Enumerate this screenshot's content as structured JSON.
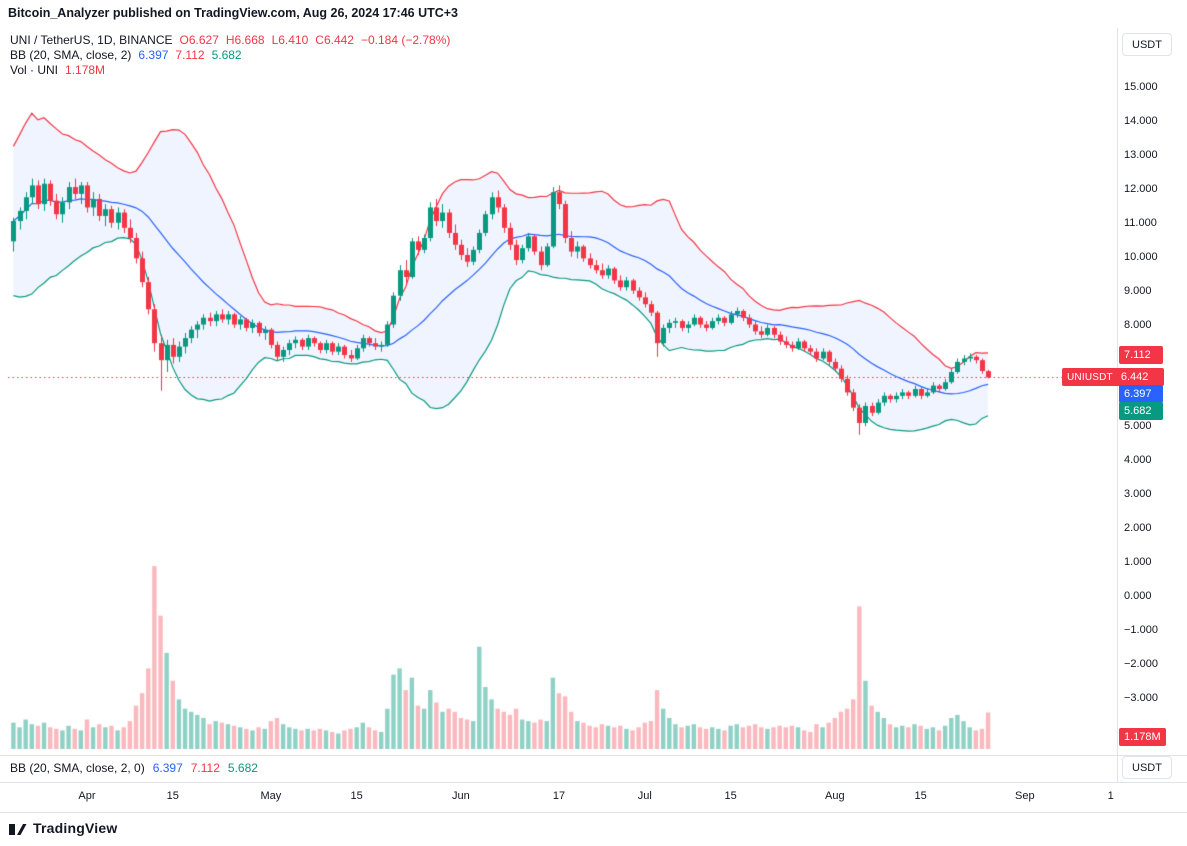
{
  "attribution": "Bitcoin_Analyzer published on TradingView.com, Aug 26, 2024 17:46 UTC+3",
  "header": {
    "symbol_line": {
      "title": "UNI / TetherUS, 1D, BINANCE",
      "o": "O6.627",
      "h": "H6.668",
      "l": "L6.410",
      "c": "C6.442",
      "change": "−0.184 (−2.78%)"
    },
    "bb_line": {
      "label": "BB (20, SMA, close, 2)",
      "basis": "6.397",
      "upper": "7.112",
      "lower": "5.682"
    },
    "vol_line": {
      "label": "Vol · UNI",
      "value": "1.178M"
    }
  },
  "bottom_legend": {
    "label": "BB (20, SMA, close, 2, 0)",
    "basis": "6.397",
    "upper": "7.112",
    "lower": "5.682"
  },
  "price_axis": {
    "currency_top": "USDT",
    "currency_bottom": "USDT",
    "labels": [
      {
        "text": "15.000",
        "value": 15
      },
      {
        "text": "14.000",
        "value": 14
      },
      {
        "text": "13.000",
        "value": 13
      },
      {
        "text": "12.000",
        "value": 12
      },
      {
        "text": "11.000",
        "value": 11
      },
      {
        "text": "10.000",
        "value": 10
      },
      {
        "text": "9.000",
        "value": 9
      },
      {
        "text": "8.000",
        "value": 8
      },
      {
        "text": "5.000",
        "value": 5
      },
      {
        "text": "4.000",
        "value": 4
      },
      {
        "text": "3.000",
        "value": 3
      },
      {
        "text": "2.000",
        "value": 2
      },
      {
        "text": "1.000",
        "value": 1
      },
      {
        "text": "0.000",
        "value": 0
      },
      {
        "text": "−1.000",
        "value": -1
      },
      {
        "text": "−2.000",
        "value": -2
      },
      {
        "text": "−3.000",
        "value": -3
      }
    ],
    "tags": [
      {
        "text": "7.112",
        "value": 7.112,
        "bg": "#f23645"
      },
      {
        "text": "6.442",
        "value": 6.442,
        "bg": "#f23645",
        "symbol": "UNIUSDT"
      },
      {
        "text": "6.397",
        "value": 6.397,
        "bg": "#2962ff"
      },
      {
        "text": "5.682",
        "value": 5.682,
        "bg": "#089981"
      }
    ],
    "volume_tag": {
      "text": "1.178M",
      "bg": "#f23645"
    }
  },
  "time_axis": {
    "labels": [
      {
        "text": "Apr",
        "date": "2024-04-01"
      },
      {
        "text": "15",
        "date": "2024-04-15"
      },
      {
        "text": "May",
        "date": "2024-05-01"
      },
      {
        "text": "15",
        "date": "2024-05-15"
      },
      {
        "text": "Jun",
        "date": "2024-06-01"
      },
      {
        "text": "17",
        "date": "2024-06-17"
      },
      {
        "text": "Jul",
        "date": "2024-07-01"
      },
      {
        "text": "15",
        "date": "2024-07-15"
      },
      {
        "text": "Aug",
        "date": "2024-08-01"
      },
      {
        "text": "15",
        "date": "2024-08-15"
      },
      {
        "text": "Sep",
        "date": "2024-09-01"
      },
      {
        "text": "1",
        "date": "2024-09-15"
      }
    ]
  },
  "footer": {
    "brand": "TradingView"
  },
  "colors": {
    "up": "#089981",
    "down": "#f23645",
    "basis": "#2962ff",
    "upper_band": "#f23645",
    "lower_band": "#089981",
    "band_fill": "rgba(41,98,255,0.07)",
    "vol_up": "rgba(8,153,129,0.45)",
    "vol_down": "rgba(242,54,69,0.35)",
    "tag_red": "#f23645",
    "tag_blue": "#2962ff",
    "tag_teal": "#089981"
  },
  "chart_data": {
    "type": "candlestick",
    "title": "UNI / TetherUS, 1D, BINANCE",
    "symbol": "UNIUSDT",
    "interval": "1D",
    "exchange": "BINANCE",
    "ylabel": "USDT",
    "ylim": [
      -3.5,
      15.5
    ],
    "x_range": [
      "2024-03-20",
      "2024-09-15"
    ],
    "start_date": "2024-03-20",
    "last": {
      "open": 6.627,
      "high": 6.668,
      "low": 6.41,
      "close": 6.442,
      "change": -0.184,
      "change_pct": -2.78,
      "volume_m": 1.178
    },
    "indicators": {
      "bb": {
        "length": 20,
        "type": "SMA",
        "source": "close",
        "mult": 2,
        "basis": 6.397,
        "upper": 7.112,
        "lower": 5.682
      }
    },
    "candles": [
      [
        10.45,
        11.15,
        10.15,
        11.05,
        0.85
      ],
      [
        11.05,
        11.45,
        10.8,
        11.35,
        0.7
      ],
      [
        11.35,
        11.9,
        11.1,
        11.75,
        0.95
      ],
      [
        11.75,
        12.3,
        11.55,
        12.1,
        0.8
      ],
      [
        12.1,
        12.25,
        11.4,
        11.55,
        0.75
      ],
      [
        11.55,
        12.3,
        11.35,
        12.15,
        0.85
      ],
      [
        12.15,
        12.25,
        11.5,
        11.65,
        0.7
      ],
      [
        11.65,
        11.85,
        11.1,
        11.25,
        0.65
      ],
      [
        11.25,
        11.75,
        11.0,
        11.6,
        0.6
      ],
      [
        11.6,
        12.2,
        11.4,
        12.05,
        0.75
      ],
      [
        12.05,
        12.3,
        11.7,
        11.85,
        0.65
      ],
      [
        11.85,
        12.2,
        11.55,
        12.1,
        0.6
      ],
      [
        12.1,
        12.2,
        11.3,
        11.45,
        0.95
      ],
      [
        11.45,
        11.9,
        11.2,
        11.7,
        0.7
      ],
      [
        11.7,
        11.85,
        11.05,
        11.2,
        0.8
      ],
      [
        11.2,
        11.55,
        10.9,
        11.4,
        0.7
      ],
      [
        11.4,
        11.5,
        10.85,
        11.0,
        0.75
      ],
      [
        11.0,
        11.45,
        10.8,
        11.3,
        0.6
      ],
      [
        11.3,
        11.4,
        10.7,
        10.85,
        0.7
      ],
      [
        10.85,
        11.1,
        10.4,
        10.55,
        0.9
      ],
      [
        10.55,
        10.7,
        9.8,
        9.95,
        1.4
      ],
      [
        9.95,
        10.15,
        9.1,
        9.25,
        1.8
      ],
      [
        9.25,
        9.4,
        8.3,
        8.45,
        2.6
      ],
      [
        8.45,
        8.6,
        7.2,
        7.45,
        5.9
      ],
      [
        7.45,
        7.7,
        6.05,
        6.95,
        4.3
      ],
      [
        6.95,
        7.55,
        6.6,
        7.4,
        3.1
      ],
      [
        7.4,
        7.6,
        6.85,
        7.05,
        2.2
      ],
      [
        7.05,
        7.5,
        6.9,
        7.35,
        1.6
      ],
      [
        7.35,
        7.75,
        7.15,
        7.6,
        1.3
      ],
      [
        7.6,
        7.95,
        7.45,
        7.85,
        1.2
      ],
      [
        7.85,
        8.1,
        7.6,
        8.0,
        1.1
      ],
      [
        8.0,
        8.3,
        7.85,
        8.2,
        1.0
      ],
      [
        8.2,
        8.35,
        7.95,
        8.1,
        0.8
      ],
      [
        8.1,
        8.4,
        7.95,
        8.3,
        0.9
      ],
      [
        8.3,
        8.45,
        8.05,
        8.15,
        0.85
      ],
      [
        8.15,
        8.4,
        8.0,
        8.3,
        0.8
      ],
      [
        8.3,
        8.35,
        7.9,
        8.0,
        0.75
      ],
      [
        8.0,
        8.25,
        7.85,
        8.15,
        0.7
      ],
      [
        8.15,
        8.2,
        7.8,
        7.9,
        0.65
      ],
      [
        7.9,
        8.15,
        7.75,
        8.05,
        0.6
      ],
      [
        8.05,
        8.1,
        7.65,
        7.75,
        0.7
      ],
      [
        7.75,
        7.95,
        7.55,
        7.85,
        0.65
      ],
      [
        7.85,
        7.9,
        7.3,
        7.4,
        0.9
      ],
      [
        7.4,
        7.5,
        6.95,
        7.05,
        1.0
      ],
      [
        7.05,
        7.35,
        6.9,
        7.25,
        0.8
      ],
      [
        7.25,
        7.55,
        7.1,
        7.45,
        0.7
      ],
      [
        7.45,
        7.65,
        7.3,
        7.55,
        0.65
      ],
      [
        7.55,
        7.6,
        7.25,
        7.35,
        0.6
      ],
      [
        7.35,
        7.7,
        7.25,
        7.6,
        0.65
      ],
      [
        7.6,
        7.65,
        7.35,
        7.45,
        0.6
      ],
      [
        7.45,
        7.5,
        7.15,
        7.25,
        0.65
      ],
      [
        7.25,
        7.55,
        7.15,
        7.45,
        0.6
      ],
      [
        7.45,
        7.5,
        7.1,
        7.2,
        0.55
      ],
      [
        7.2,
        7.45,
        7.1,
        7.35,
        0.5
      ],
      [
        7.35,
        7.4,
        7.0,
        7.1,
        0.6
      ],
      [
        7.1,
        7.25,
        6.9,
        7.0,
        0.65
      ],
      [
        7.0,
        7.4,
        6.95,
        7.3,
        0.7
      ],
      [
        7.3,
        7.7,
        7.2,
        7.6,
        0.85
      ],
      [
        7.6,
        7.65,
        7.35,
        7.45,
        0.7
      ],
      [
        7.45,
        7.6,
        7.25,
        7.35,
        0.6
      ],
      [
        7.35,
        7.5,
        7.2,
        7.4,
        0.55
      ],
      [
        7.4,
        8.1,
        7.35,
        8.0,
        1.3
      ],
      [
        8.0,
        8.95,
        7.9,
        8.85,
        2.4
      ],
      [
        8.85,
        9.75,
        8.7,
        9.6,
        2.6
      ],
      [
        9.6,
        9.9,
        9.2,
        9.4,
        1.9
      ],
      [
        9.4,
        10.55,
        9.35,
        10.45,
        2.3
      ],
      [
        10.45,
        10.6,
        10.05,
        10.2,
        1.4
      ],
      [
        10.2,
        10.65,
        10.1,
        10.55,
        1.3
      ],
      [
        10.55,
        11.6,
        10.45,
        11.45,
        1.9
      ],
      [
        11.45,
        11.7,
        10.9,
        11.05,
        1.5
      ],
      [
        11.05,
        11.55,
        10.85,
        11.3,
        1.2
      ],
      [
        11.3,
        11.4,
        10.55,
        10.7,
        1.3
      ],
      [
        10.7,
        10.95,
        10.2,
        10.35,
        1.2
      ],
      [
        10.35,
        10.5,
        9.9,
        10.05,
        1.0
      ],
      [
        10.05,
        10.25,
        9.7,
        9.85,
        0.95
      ],
      [
        9.85,
        10.3,
        9.75,
        10.2,
        0.9
      ],
      [
        10.2,
        10.8,
        10.1,
        10.7,
        3.3
      ],
      [
        10.7,
        11.35,
        10.6,
        11.25,
        2.0
      ],
      [
        11.25,
        11.9,
        11.1,
        11.75,
        1.6
      ],
      [
        11.75,
        11.95,
        11.3,
        11.45,
        1.3
      ],
      [
        11.45,
        11.55,
        10.7,
        10.85,
        1.2
      ],
      [
        10.85,
        11.0,
        10.2,
        10.35,
        1.1
      ],
      [
        10.35,
        10.5,
        9.75,
        9.9,
        1.3
      ],
      [
        9.9,
        10.35,
        9.8,
        10.25,
        0.95
      ],
      [
        10.25,
        10.7,
        10.15,
        10.6,
        0.9
      ],
      [
        10.6,
        10.65,
        10.05,
        10.15,
        0.85
      ],
      [
        10.15,
        10.3,
        9.6,
        9.75,
        0.95
      ],
      [
        9.75,
        10.4,
        9.7,
        10.3,
        0.9
      ],
      [
        10.3,
        12.05,
        10.25,
        11.9,
        2.3
      ],
      [
        11.9,
        12.1,
        11.4,
        11.55,
        1.8
      ],
      [
        11.55,
        11.65,
        10.4,
        10.55,
        1.7
      ],
      [
        10.55,
        10.75,
        10.0,
        10.15,
        1.2
      ],
      [
        10.15,
        10.45,
        9.95,
        10.3,
        0.9
      ],
      [
        10.3,
        10.35,
        9.85,
        9.95,
        0.85
      ],
      [
        9.95,
        10.1,
        9.65,
        9.75,
        0.75
      ],
      [
        9.75,
        9.9,
        9.5,
        9.6,
        0.7
      ],
      [
        9.6,
        9.8,
        9.35,
        9.45,
        0.8
      ],
      [
        9.45,
        9.75,
        9.35,
        9.65,
        0.75
      ],
      [
        9.65,
        9.7,
        9.2,
        9.3,
        0.7
      ],
      [
        9.3,
        9.45,
        9.0,
        9.1,
        0.75
      ],
      [
        9.1,
        9.4,
        9.0,
        9.3,
        0.65
      ],
      [
        9.3,
        9.35,
        8.9,
        9.0,
        0.6
      ],
      [
        9.0,
        9.1,
        8.7,
        8.8,
        0.7
      ],
      [
        8.8,
        8.95,
        8.5,
        8.6,
        0.85
      ],
      [
        8.6,
        8.7,
        8.25,
        8.35,
        0.9
      ],
      [
        8.35,
        8.4,
        7.05,
        7.45,
        1.9
      ],
      [
        7.45,
        8.0,
        7.35,
        7.9,
        1.3
      ],
      [
        7.9,
        8.15,
        7.75,
        8.05,
        1.0
      ],
      [
        8.05,
        8.2,
        7.9,
        8.1,
        0.8
      ],
      [
        8.1,
        8.15,
        7.8,
        7.9,
        0.7
      ],
      [
        7.9,
        8.1,
        7.75,
        8.0,
        0.75
      ],
      [
        8.0,
        8.3,
        7.95,
        8.2,
        0.8
      ],
      [
        8.2,
        8.25,
        7.9,
        8.0,
        0.7
      ],
      [
        8.0,
        8.1,
        7.8,
        7.9,
        0.65
      ],
      [
        7.9,
        8.2,
        7.85,
        8.1,
        0.7
      ],
      [
        8.1,
        8.3,
        8.0,
        8.2,
        0.65
      ],
      [
        8.2,
        8.25,
        7.95,
        8.05,
        0.6
      ],
      [
        8.05,
        8.4,
        8.0,
        8.3,
        0.75
      ],
      [
        8.3,
        8.5,
        8.2,
        8.4,
        0.8
      ],
      [
        8.4,
        8.45,
        8.1,
        8.2,
        0.7
      ],
      [
        8.2,
        8.3,
        7.9,
        8.0,
        0.75
      ],
      [
        8.0,
        8.1,
        7.7,
        7.8,
        0.8
      ],
      [
        7.8,
        7.95,
        7.6,
        7.7,
        0.7
      ],
      [
        7.7,
        8.0,
        7.65,
        7.9,
        0.65
      ],
      [
        7.9,
        7.95,
        7.6,
        7.7,
        0.7
      ],
      [
        7.7,
        7.8,
        7.4,
        7.5,
        0.75
      ],
      [
        7.5,
        7.65,
        7.3,
        7.4,
        0.7
      ],
      [
        7.4,
        7.5,
        7.2,
        7.3,
        0.75
      ],
      [
        7.3,
        7.6,
        7.25,
        7.5,
        0.7
      ],
      [
        7.5,
        7.55,
        7.2,
        7.3,
        0.6
      ],
      [
        7.3,
        7.4,
        7.1,
        7.2,
        0.55
      ],
      [
        7.2,
        7.3,
        6.9,
        7.0,
        0.8
      ],
      [
        7.0,
        7.3,
        6.95,
        7.2,
        0.7
      ],
      [
        7.2,
        7.25,
        6.8,
        6.9,
        0.85
      ],
      [
        6.9,
        7.0,
        6.6,
        6.7,
        1.0
      ],
      [
        6.7,
        6.8,
        6.3,
        6.4,
        1.2
      ],
      [
        6.4,
        6.5,
        5.9,
        6.0,
        1.3
      ],
      [
        6.0,
        6.1,
        5.45,
        5.55,
        1.6
      ],
      [
        5.55,
        5.65,
        4.75,
        5.1,
        4.6
      ],
      [
        5.1,
        5.7,
        5.0,
        5.6,
        2.2
      ],
      [
        5.6,
        5.7,
        5.3,
        5.4,
        1.4
      ],
      [
        5.4,
        5.8,
        5.35,
        5.7,
        1.2
      ],
      [
        5.7,
        6.0,
        5.6,
        5.9,
        1.0
      ],
      [
        5.9,
        5.95,
        5.7,
        5.8,
        0.8
      ],
      [
        5.8,
        6.0,
        5.7,
        5.9,
        0.7
      ],
      [
        5.9,
        6.1,
        5.8,
        6.0,
        0.75
      ],
      [
        6.0,
        6.05,
        5.8,
        5.9,
        0.7
      ],
      [
        5.9,
        6.2,
        5.85,
        6.1,
        0.8
      ],
      [
        6.1,
        6.15,
        5.8,
        5.9,
        0.75
      ],
      [
        5.9,
        6.1,
        5.85,
        6.0,
        0.65
      ],
      [
        6.0,
        6.3,
        5.95,
        6.2,
        0.7
      ],
      [
        6.2,
        6.25,
        6.0,
        6.1,
        0.6
      ],
      [
        6.1,
        6.4,
        6.05,
        6.3,
        0.75
      ],
      [
        6.3,
        6.7,
        6.25,
        6.6,
        1.0
      ],
      [
        6.6,
        7.0,
        6.55,
        6.9,
        1.1
      ],
      [
        6.9,
        7.1,
        6.8,
        7.0,
        0.9
      ],
      [
        7.0,
        7.15,
        6.9,
        7.05,
        0.7
      ],
      [
        7.05,
        7.1,
        6.85,
        6.95,
        0.6
      ],
      [
        6.95,
        7.0,
        6.55,
        6.63,
        0.65
      ],
      [
        6.627,
        6.668,
        6.41,
        6.442,
        1.178
      ]
    ]
  }
}
